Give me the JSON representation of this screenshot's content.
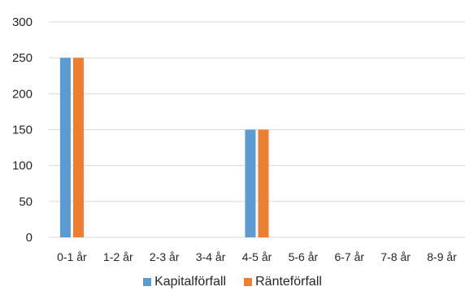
{
  "chart_data": {
    "type": "bar",
    "categories": [
      "0-1 år",
      "1-2 år",
      "2-3 år",
      "3-4 år",
      "4-5 år",
      "5-6 år",
      "6-7 år",
      "7-8 år",
      "8-9 år"
    ],
    "series": [
      {
        "name": "Kapitalförfall",
        "color": "#5b9bd5",
        "values": [
          250,
          0,
          0,
          0,
          150,
          0,
          0,
          0,
          0
        ]
      },
      {
        "name": "Ränteförfall",
        "color": "#ed7d31",
        "values": [
          250,
          0,
          0,
          0,
          150,
          0,
          0,
          0,
          0
        ]
      }
    ],
    "ylim": [
      0,
      300
    ],
    "yticks": [
      0,
      50,
      100,
      150,
      200,
      250,
      300
    ],
    "grid": true,
    "legend_position": "bottom"
  }
}
